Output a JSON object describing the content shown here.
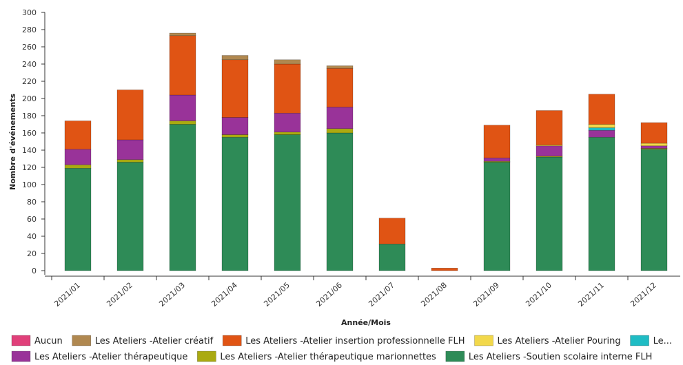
{
  "chart_data": {
    "type": "bar",
    "stacked": true,
    "xlabel": "Année/Mois",
    "ylabel": "Nombre d'événements",
    "ylim": [
      0,
      300
    ],
    "yticks": [
      0,
      20,
      40,
      60,
      80,
      100,
      120,
      140,
      160,
      180,
      200,
      220,
      240,
      260,
      280,
      300
    ],
    "grid": false,
    "legend_position": "bottom",
    "categories": [
      "2021/01",
      "2021/02",
      "2021/03",
      "2021/04",
      "2021/05",
      "2021/06",
      "2021/07",
      "2021/08",
      "2021/09",
      "2021/10",
      "2021/11",
      "2021/12"
    ],
    "series": [
      {
        "name": "Les Ateliers -Soutien scolaire interne FLH",
        "color": "#2e8b57",
        "values": [
          119,
          126,
          170,
          155,
          158,
          160,
          31,
          0,
          126,
          132,
          155,
          141
        ]
      },
      {
        "name": "Les Ateliers -Atelier thérapeutique marionnettes",
        "color": "#aaaa11",
        "values": [
          4,
          3,
          4,
          3,
          3,
          5,
          0,
          0,
          1,
          1,
          0,
          1
        ]
      },
      {
        "name": "Les Ateliers -Atelier thérapeutique",
        "color": "#993399",
        "values": [
          18,
          23,
          30,
          20,
          22,
          25,
          0,
          0,
          4,
          12,
          8,
          3
        ]
      },
      {
        "name": "Le...",
        "color": "#1fbcc4",
        "values": [
          0,
          0,
          0,
          0,
          0,
          0,
          0,
          0,
          0,
          0,
          3,
          0
        ]
      },
      {
        "name": "Les Ateliers -Atelier Pouring",
        "color": "#f2d84b",
        "values": [
          0,
          0,
          0,
          0,
          0,
          0,
          0,
          0,
          0,
          1,
          4,
          3
        ]
      },
      {
        "name": "Les Ateliers -Atelier insertion professionnelle FLH",
        "color": "#e05414",
        "values": [
          33,
          58,
          69,
          67,
          57,
          45,
          30,
          3,
          38,
          40,
          35,
          24
        ]
      },
      {
        "name": "Les Ateliers -Atelier créatif",
        "color": "#b08850",
        "values": [
          0,
          0,
          3,
          5,
          5,
          3,
          0,
          0,
          0,
          0,
          0,
          0
        ]
      },
      {
        "name": "Aucun",
        "color": "#e0407a",
        "values": [
          0,
          0,
          0,
          0,
          0,
          0,
          0,
          0,
          0,
          0,
          0,
          0
        ]
      }
    ],
    "legend_order": [
      "Aucun",
      "Les Ateliers -Atelier créatif",
      "Les Ateliers -Atelier insertion professionnelle FLH",
      "Les Ateliers -Atelier Pouring",
      "Le...",
      "Les Ateliers -Atelier thérapeutique",
      "Les Ateliers -Atelier thérapeutique marionnettes",
      "Les Ateliers -Soutien scolaire interne FLH"
    ]
  }
}
